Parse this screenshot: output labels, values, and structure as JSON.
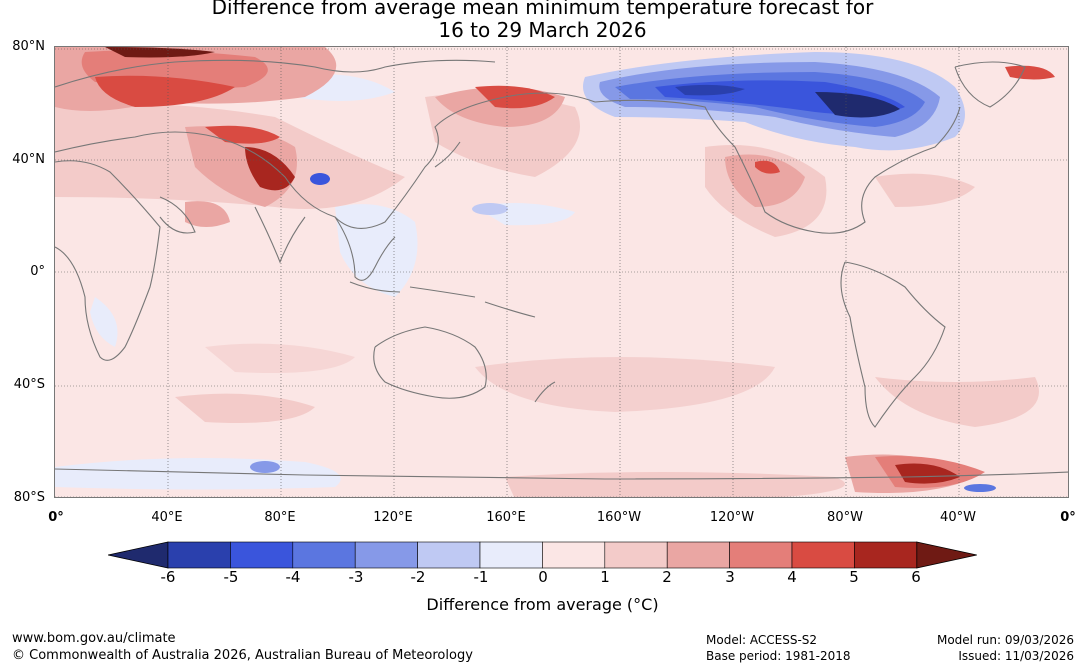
{
  "title": {
    "line1": "Difference from average mean minimum temperature forecast for",
    "line2": "16 to 29 March 2026"
  },
  "map": {
    "latitude_labels": [
      "80°N",
      "40°N",
      "0°",
      "40°S",
      "80°S"
    ],
    "longitude_labels": [
      "0°",
      "40°E",
      "80°E",
      "120°E",
      "160°E",
      "160°W",
      "120°W",
      "80°W",
      "40°W",
      "0°"
    ]
  },
  "colorbar": {
    "ticks": [
      "-6",
      "-5",
      "-4",
      "-3",
      "-2",
      "-1",
      "0",
      "1",
      "2",
      "3",
      "4",
      "5",
      "6"
    ],
    "colors": [
      "#1f2a6e",
      "#2a40ad",
      "#3a55dc",
      "#5b76e0",
      "#8699e8",
      "#bfc9f3",
      "#e8ecfb",
      "#fbe6e5",
      "#f3cbc9",
      "#eaa6a3",
      "#e47e79",
      "#d94b42",
      "#a8261f",
      "#6f1a14"
    ],
    "label": "Difference from average (°C)"
  },
  "footer": {
    "website": "www.bom.gov.au/climate",
    "copyright": "© Commonwealth of Australia 2026, Australian Bureau of Meteorology",
    "model": "Model: ACCESS-S2",
    "base_period": "Base period: 1981-2018",
    "model_run": "Model run: 09/03/2026",
    "issued": "Issued: 11/03/2026"
  }
}
